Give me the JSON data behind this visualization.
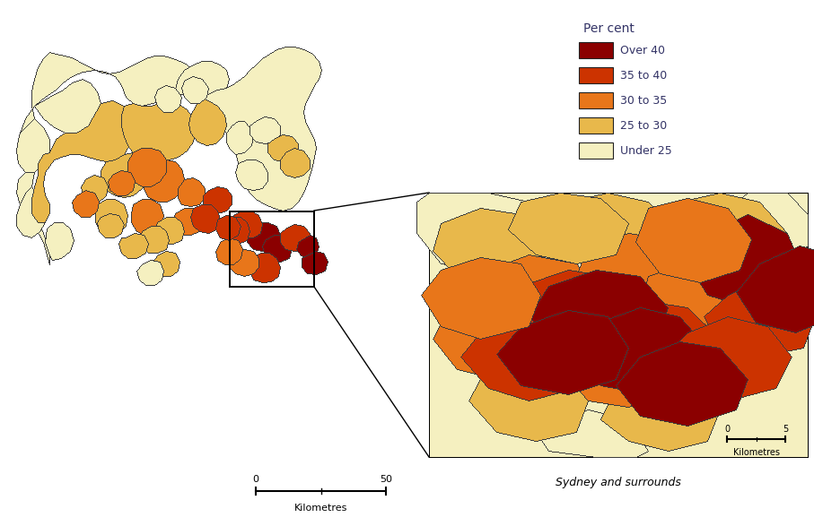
{
  "legend_title": "Per cent",
  "legend_items": [
    {
      "label": "Over 40",
      "color": "#8B0000"
    },
    {
      "label": "35 to 40",
      "color": "#CC3300"
    },
    {
      "label": "30 to 35",
      "color": "#E8761A"
    },
    {
      "label": "25 to 30",
      "color": "#E8B84B"
    },
    {
      "label": "Under 25",
      "color": "#F5F0C0"
    }
  ],
  "background_color": "#FFFFFF",
  "inset_label": "Sydney and surrounds",
  "legend_fontsize": 9,
  "legend_title_fontsize": 10,
  "border_color": "#222222",
  "text_color": "#333366",
  "scalebar_main_label": "Kilometres",
  "scalebar_main_ticks": [
    "0",
    "50"
  ],
  "scalebar_inset_label": "Kilometres",
  "scalebar_inset_ticks": [
    "0",
    "5"
  ]
}
